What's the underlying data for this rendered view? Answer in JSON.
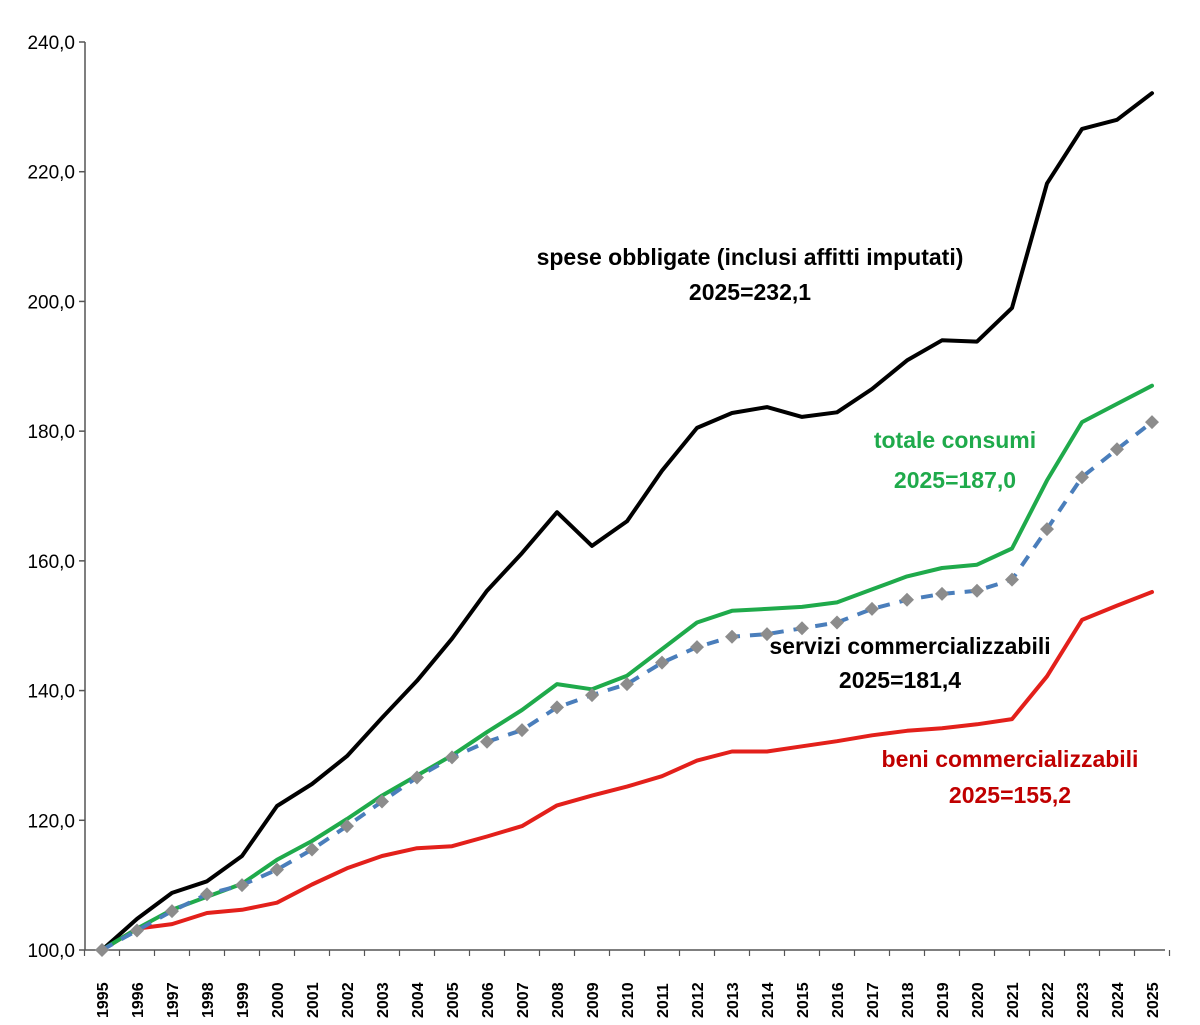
{
  "chart_data": {
    "type": "line",
    "x": [
      "1995",
      "1996",
      "1997",
      "1998",
      "1999",
      "2000",
      "2001",
      "2002",
      "2003",
      "2004",
      "2005",
      "2006",
      "2007",
      "2008",
      "2009",
      "2010",
      "2011",
      "2012",
      "2013",
      "2014",
      "2015",
      "2016",
      "2017",
      "2018",
      "2019",
      "2020",
      "2021",
      "2022",
      "2023",
      "2024",
      "2025"
    ],
    "yticks": [
      "100,0",
      "120,0",
      "140,0",
      "160,0",
      "180,0",
      "200,0",
      "220,0",
      "240,0"
    ],
    "ylim": [
      100,
      240
    ],
    "grid": false,
    "series": [
      {
        "key": "spese",
        "color": "#000000",
        "style": "solid",
        "values": [
          100.0,
          104.8,
          108.8,
          110.6,
          114.5,
          122.2,
          125.6,
          129.9,
          135.8,
          141.5,
          148.0,
          155.4,
          161.2,
          167.5,
          162.3,
          166.1,
          173.9,
          180.5,
          182.8,
          183.7,
          182.2,
          182.9,
          186.5,
          190.9,
          194.0,
          193.8,
          199.0,
          218.2,
          226.6,
          228.0,
          232.1
        ]
      },
      {
        "key": "totale",
        "color": "#1faa4b",
        "style": "solid",
        "values": [
          100.0,
          103.3,
          106.2,
          108.2,
          110.2,
          113.9,
          116.8,
          120.2,
          123.8,
          126.9,
          130.0,
          133.6,
          137.0,
          141.0,
          140.2,
          142.3,
          146.4,
          150.5,
          152.3,
          152.6,
          152.9,
          153.6,
          155.6,
          157.6,
          158.9,
          159.4,
          161.9,
          172.4,
          181.4,
          184.2,
          187.0
        ]
      },
      {
        "key": "servizi",
        "color": "#4a7ebb",
        "style": "dashed",
        "values": [
          100.0,
          103.0,
          106.0,
          108.6,
          110.0,
          112.4,
          115.5,
          119.1,
          122.9,
          126.6,
          129.7,
          132.1,
          133.9,
          137.4,
          139.3,
          141.0,
          144.3,
          146.7,
          148.3,
          148.7,
          149.6,
          150.5,
          152.6,
          154.0,
          154.9,
          155.4,
          157.1,
          164.9,
          172.9,
          177.2,
          181.4
        ]
      },
      {
        "key": "beni",
        "color": "#e3201b",
        "style": "solid",
        "values": [
          100.0,
          103.3,
          104.0,
          105.7,
          106.2,
          107.3,
          110.1,
          112.6,
          114.5,
          115.7,
          116.0,
          117.5,
          119.1,
          122.3,
          123.8,
          125.2,
          126.8,
          129.2,
          130.6,
          130.6,
          131.4,
          132.2,
          133.1,
          133.8,
          134.2,
          134.8,
          135.6,
          142.2,
          150.9,
          153.1,
          155.2
        ]
      }
    ],
    "annotations": {
      "spese": {
        "line1": "spese obbligate (inclusi affitti imputati)",
        "line2": "2025=232,1",
        "color": "#000000"
      },
      "totale": {
        "line1": "totale consumi",
        "line2": "2025=187,0",
        "color": "#1faa4b"
      },
      "servizi": {
        "line1": "servizi commercializzabili",
        "line2": "2025=181,4",
        "color": "#000000"
      },
      "beni": {
        "line1": "beni commercializzabili",
        "line2": "2025=155,2",
        "color": "#c00000"
      }
    }
  }
}
